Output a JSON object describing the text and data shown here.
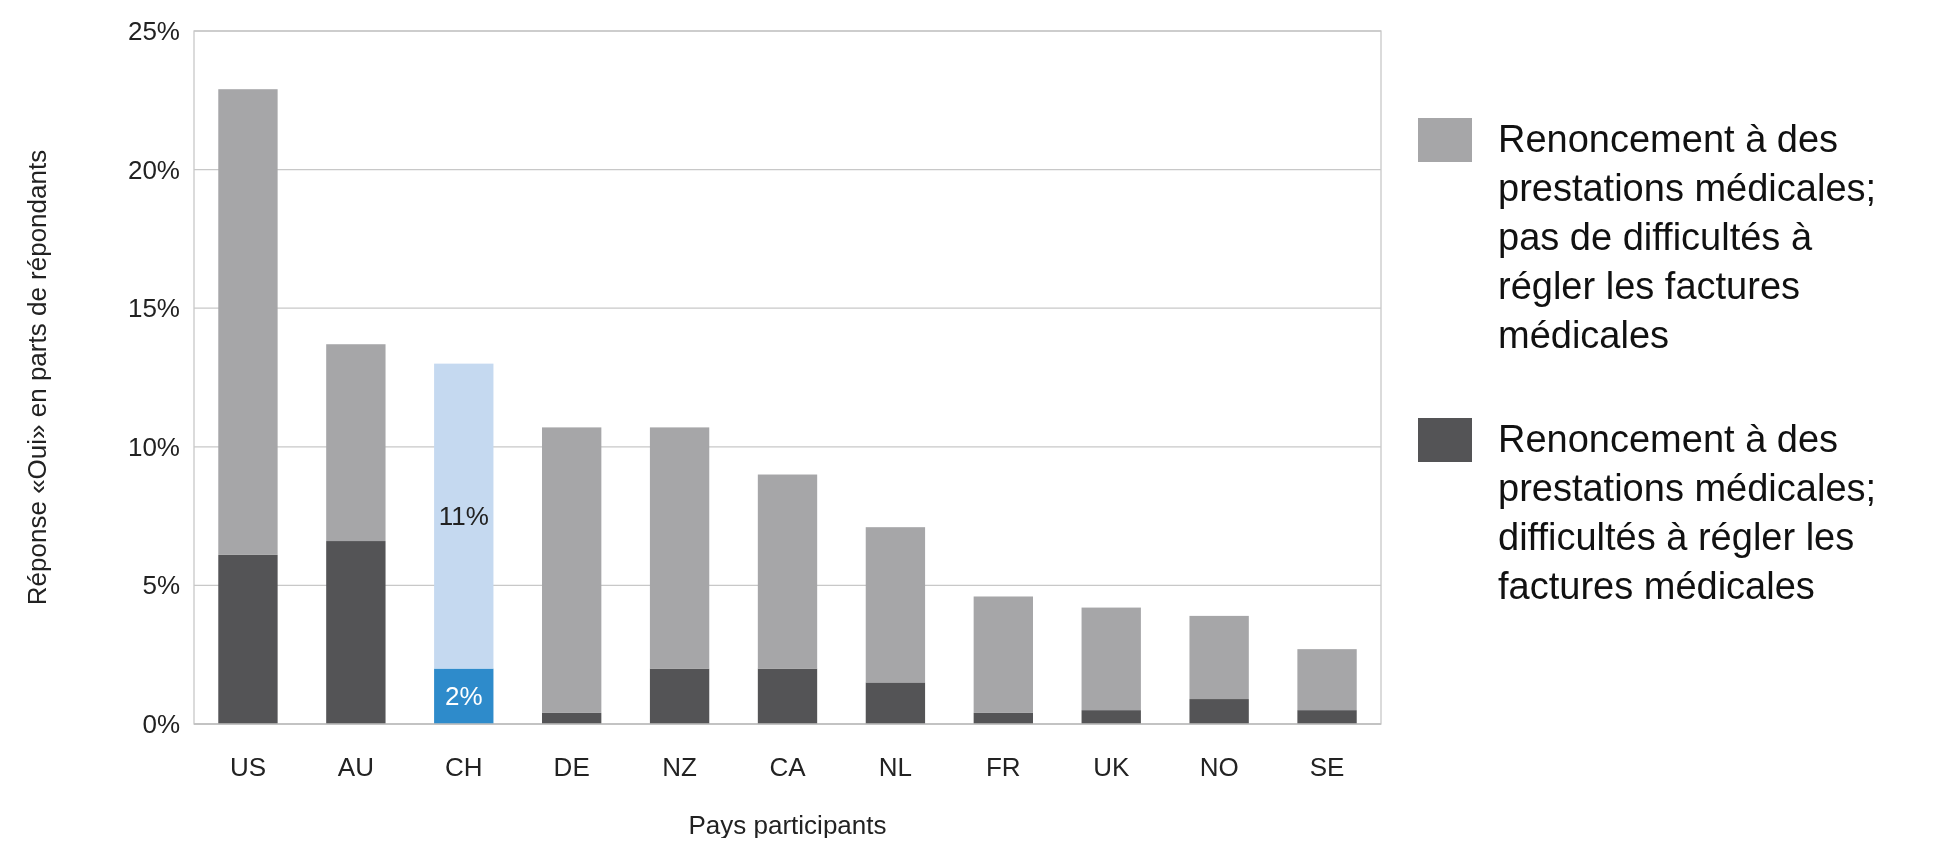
{
  "chart_data": {
    "type": "bar",
    "stacked": true,
    "xlabel": "Pays participants",
    "ylabel": "Réponse «Oui» en parts de répondants",
    "categories": [
      "US",
      "AU",
      "CH",
      "DE",
      "NZ",
      "CA",
      "NL",
      "FR",
      "UK",
      "NO",
      "SE"
    ],
    "series": [
      {
        "name": "Renoncement à des prestations médicales; difficultés à régler les factures médicales",
        "color": "#545456",
        "colors": [
          "#545456",
          "#545456",
          "#2e8bcb",
          "#545456",
          "#545456",
          "#545456",
          "#545456",
          "#545456",
          "#545456",
          "#545456",
          "#545456"
        ],
        "values": [
          6.1,
          6.6,
          2,
          0.4,
          2.0,
          2.0,
          1.5,
          0.4,
          0.5,
          0.9,
          0.5
        ],
        "value_labels": [
          null,
          null,
          "2%",
          null,
          null,
          null,
          null,
          null,
          null,
          null,
          null
        ]
      },
      {
        "name": "Renoncement à des prestations médicales; pas de difficultés à régler les factures médicales",
        "color": "#a6a6a8",
        "colors": [
          "#a6a6a8",
          "#a6a6a8",
          "#c5d9f0",
          "#a6a6a8",
          "#a6a6a8",
          "#a6a6a8",
          "#a6a6a8",
          "#a6a6a8",
          "#a6a6a8",
          "#a6a6a8",
          "#a6a6a8"
        ],
        "values": [
          16.8,
          7.1,
          11,
          10.3,
          8.7,
          7.0,
          5.6,
          4.2,
          3.7,
          3.0,
          2.2
        ],
        "value_labels": [
          null,
          null,
          "11%",
          null,
          null,
          null,
          null,
          null,
          null,
          null,
          null
        ]
      }
    ],
    "ylim": [
      0,
      25
    ],
    "yticks": [
      {
        "value": 0,
        "label": "0%"
      },
      {
        "value": 5,
        "label": "5%"
      },
      {
        "value": 10,
        "label": "10%"
      },
      {
        "value": 15,
        "label": "15%"
      },
      {
        "value": 20,
        "label": "20%"
      },
      {
        "value": 25,
        "label": "25%"
      }
    ],
    "grid": "y",
    "legend": "right"
  }
}
